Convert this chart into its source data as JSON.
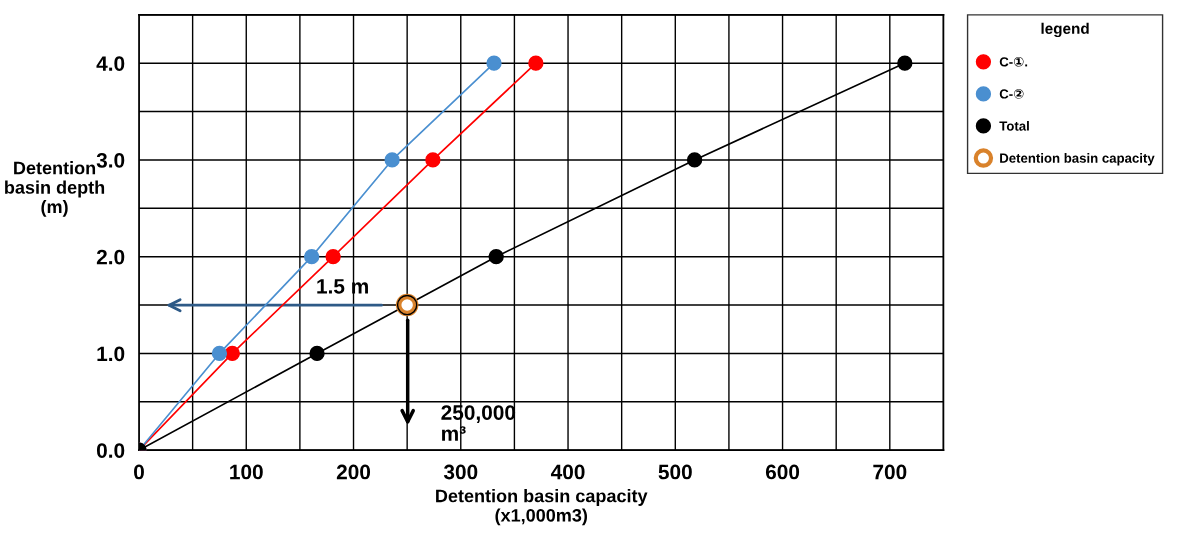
{
  "chart_data": {
    "type": "line",
    "xlabel": "Detention basin capacity\n(x1,000m3)",
    "ylabel": "Detention\nbasin depth\n(m)",
    "legend_title": "legend",
    "legend": "right",
    "grid": true,
    "marker": "circle",
    "line_style": "solid",
    "xlim": [
      0,
      750
    ],
    "ylim": [
      0,
      4.5
    ],
    "xticks": [
      0,
      {
        "value": 50,
        "label": null
      },
      100,
      {
        "value": 150,
        "label": null
      },
      200,
      {
        "value": 250,
        "label": null
      },
      300,
      {
        "value": 350,
        "label": null
      },
      400,
      {
        "value": 450,
        "label": null
      },
      500,
      {
        "value": 550,
        "label": null
      },
      600,
      {
        "value": 650,
        "label": null
      },
      700,
      {
        "value": 750,
        "label": null
      }
    ],
    "yticks": [
      {
        "value": 0,
        "label": "0.0"
      },
      {
        "value": 0.5,
        "label": null
      },
      {
        "value": 1,
        "label": "1.0"
      },
      {
        "value": 1.5,
        "label": null
      },
      {
        "value": 2,
        "label": "2.0"
      },
      {
        "value": 2.5,
        "label": null
      },
      {
        "value": 3,
        "label": "3.0"
      },
      {
        "value": 3.5,
        "label": null
      },
      {
        "value": 4,
        "label": "4.0"
      },
      {
        "value": 4.5,
        "label": null
      }
    ],
    "series": [
      {
        "name": "C-①.",
        "color": "#ff0000",
        "x": [
          0,
          87,
          181,
          274,
          370
        ],
        "values": [
          0,
          1,
          2,
          3,
          4
        ]
      },
      {
        "name": "C-②",
        "color": "#4a8fd0",
        "x": [
          0,
          75,
          161,
          236,
          331
        ],
        "values": [
          0,
          1,
          2,
          3,
          4
        ]
      },
      {
        "name": "Total",
        "color": "#000000",
        "x": [
          0,
          166,
          333,
          518,
          714
        ],
        "values": [
          0,
          1,
          2,
          3,
          4
        ]
      },
      {
        "name": "Detention basin capacity",
        "type": "scatter",
        "color": "#d9822b",
        "x": [
          250
        ],
        "values": [
          1.5
        ]
      }
    ],
    "annotations": [
      "1.5 m",
      "250,000\nm³"
    ]
  }
}
